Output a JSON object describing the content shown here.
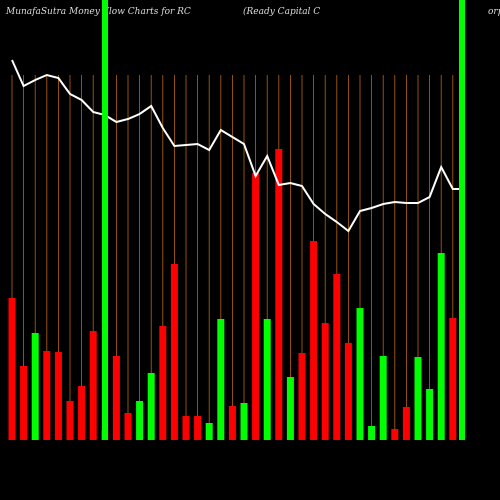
{
  "chart_data": {
    "type": "bar",
    "title": "MunafaSutra  Money Flow  Charts for RC",
    "subtitle": "(Ready Capital C",
    "subtitle_tail": "orp",
    "ylim": [
      0,
      380
    ],
    "values": [
      142,
      74,
      107,
      89,
      88,
      39,
      54,
      109,
      10,
      84,
      27,
      39,
      67,
      114,
      176,
      24,
      24,
      17,
      121,
      34,
      37,
      267,
      121,
      291,
      63,
      87,
      199,
      117,
      166,
      97,
      132,
      14,
      84,
      11,
      33,
      83,
      51,
      187,
      122
    ],
    "colors": [
      "#f00",
      "#f00",
      "#0f0",
      "#f00",
      "#f00",
      "#f00",
      "#f00",
      "#f00",
      "#f00",
      "#f00",
      "#f00",
      "#0f0",
      "#0f0",
      "#f00",
      "#f00",
      "#f00",
      "#f00",
      "#0f0",
      "#0f0",
      "#f00",
      "#0f0",
      "#f00",
      "#0f0",
      "#f00",
      "#0f0",
      "#f00",
      "#f00",
      "#f00",
      "#f00",
      "#f00",
      "#0f0",
      "#0f0",
      "#0f0",
      "#f00",
      "#f00",
      "#0f0",
      "#0f0",
      "#0f0",
      "#f00"
    ],
    "line": {
      "color": "#fff",
      "values": [
        380,
        354,
        360,
        365,
        362,
        346,
        340,
        328,
        325,
        318,
        321,
        326,
        334,
        312,
        294,
        295,
        296,
        290,
        310,
        303,
        296,
        264,
        284,
        255,
        257,
        254,
        236,
        226,
        218,
        209,
        229,
        232,
        236,
        238,
        237,
        237,
        243,
        273,
        251
      ]
    }
  }
}
